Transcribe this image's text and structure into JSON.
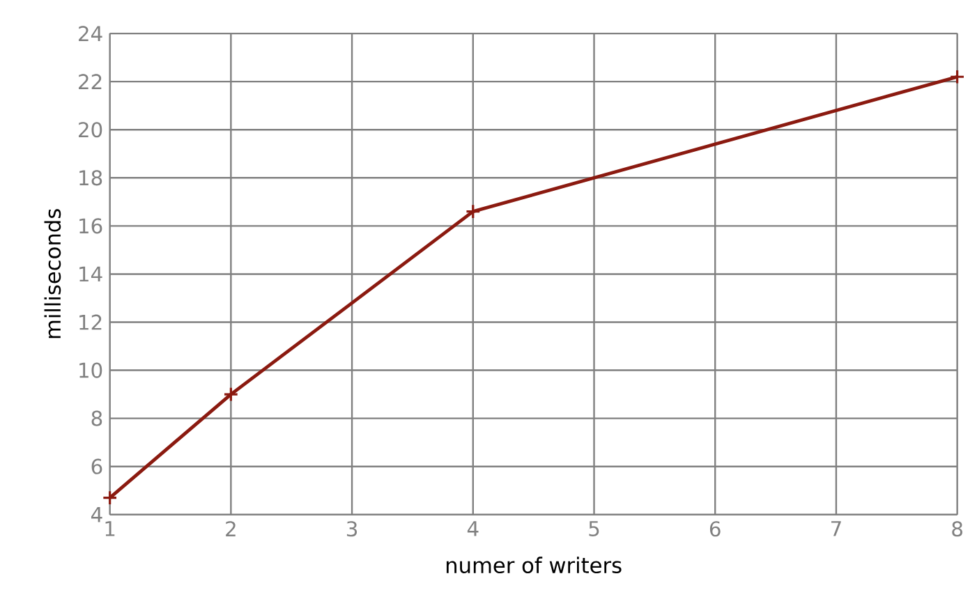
{
  "chart_data": {
    "type": "line",
    "xlabel": "numer of writers",
    "ylabel": "milliseconds",
    "x": [
      1,
      2,
      4,
      8
    ],
    "series": [
      {
        "color": "#8b1a10",
        "values": [
          4.7,
          9.0,
          16.6,
          22.2
        ]
      }
    ],
    "xlim": [
      1,
      8
    ],
    "ylim": [
      4,
      24
    ],
    "xticks": [
      1,
      2,
      3,
      4,
      5,
      6,
      7,
      8
    ],
    "yticks": [
      4,
      6,
      8,
      10,
      12,
      14,
      16,
      18,
      20,
      22,
      24
    ],
    "grid": true,
    "marker": "cross",
    "line_style": "solid"
  }
}
